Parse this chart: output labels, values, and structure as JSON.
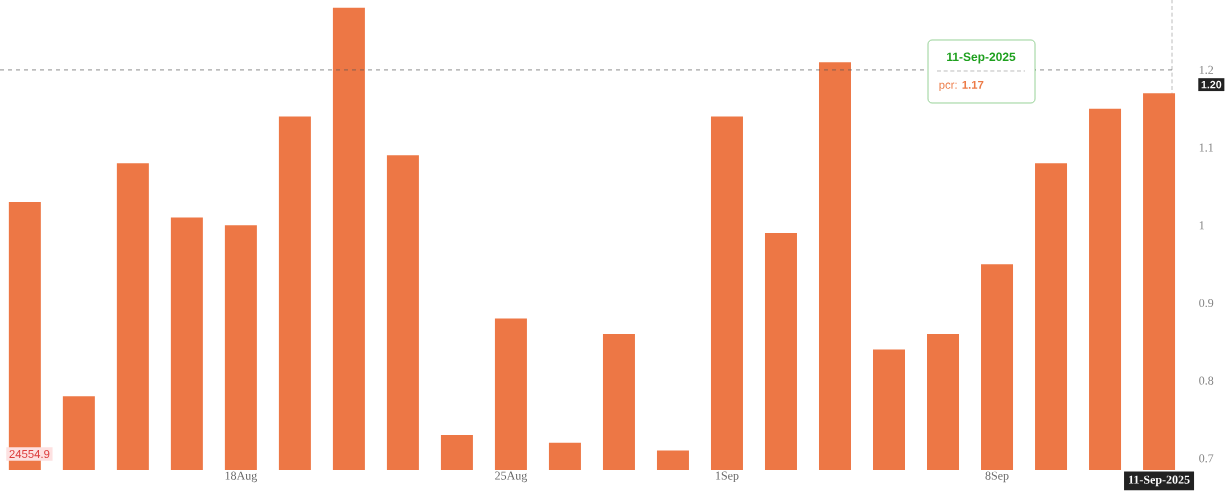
{
  "chart_data": {
    "type": "bar",
    "categories": [
      null,
      null,
      null,
      null,
      "18Aug",
      null,
      null,
      null,
      null,
      "25Aug",
      null,
      null,
      null,
      "1Sep",
      null,
      null,
      null,
      null,
      "8Sep",
      null,
      null,
      "11-Sep-2025"
    ],
    "values": [
      1.03,
      0.78,
      1.08,
      1.01,
      1.0,
      1.14,
      1.28,
      1.09,
      0.73,
      0.88,
      0.72,
      0.86,
      0.71,
      1.14,
      0.99,
      1.21,
      0.84,
      0.86,
      0.95,
      1.08,
      1.15,
      1.17
    ],
    "color": "#ed7745",
    "ylim": [
      0.685,
      1.29
    ],
    "yticks": [
      0.7,
      0.8,
      0.9,
      1,
      1.1,
      1.2
    ],
    "ref_lines": [
      {
        "axis": "y",
        "value": 1.2,
        "label": "1.20",
        "color": "#555555",
        "line_style": "dashed"
      }
    ],
    "annotations": [
      "11-Sep-2025",
      "pcr: **1.17**",
      "24554.9"
    ],
    "tick_labels": true
  }
}
